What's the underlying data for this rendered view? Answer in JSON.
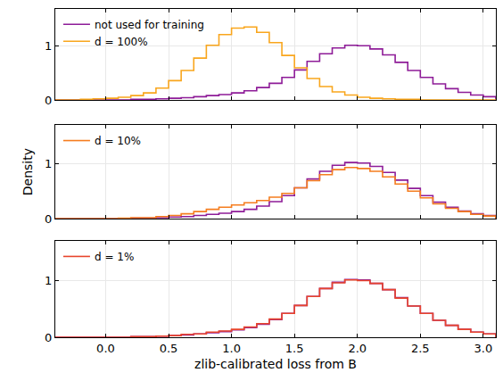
{
  "chart_data": [
    {
      "type": "histogram",
      "bins": [
        -0.4,
        -0.3,
        -0.2,
        -0.1,
        0.0,
        0.1,
        0.2,
        0.3,
        0.4,
        0.5,
        0.6,
        0.7,
        0.8,
        0.9,
        1.0,
        1.1,
        1.2,
        1.3,
        1.4,
        1.5,
        1.6,
        1.7,
        1.8,
        1.9,
        2.0,
        2.1,
        2.2,
        2.3,
        2.4,
        2.5,
        2.6,
        2.7,
        2.8,
        2.9,
        3.0,
        3.1
      ],
      "series": [
        {
          "name": "not used for training",
          "color": "#8e1c98",
          "values": [
            0,
            0,
            0,
            0,
            0,
            0,
            0.01,
            0.01,
            0.02,
            0.03,
            0.04,
            0.06,
            0.08,
            0.1,
            0.13,
            0.17,
            0.23,
            0.31,
            0.42,
            0.56,
            0.72,
            0.86,
            0.97,
            1.02,
            1.01,
            0.95,
            0.84,
            0.7,
            0.55,
            0.42,
            0.3,
            0.21,
            0.14,
            0.09,
            0.06
          ]
        },
        {
          "name": "d = 100%",
          "color": "#f9a61d",
          "values": [
            0,
            0,
            0.01,
            0.02,
            0.03,
            0.05,
            0.08,
            0.13,
            0.22,
            0.36,
            0.55,
            0.78,
            1.02,
            1.22,
            1.34,
            1.36,
            1.26,
            1.07,
            0.83,
            0.6,
            0.4,
            0.25,
            0.15,
            0.09,
            0.05,
            0.03,
            0.02,
            0.01,
            0.01,
            0,
            0,
            0,
            0,
            0,
            0
          ]
        }
      ],
      "xlim": [
        -0.4,
        3.1
      ],
      "xticks": [
        {
          "value": 0,
          "label": "0.0"
        },
        {
          "value": 0.5,
          "label": "0.5"
        },
        {
          "value": 1,
          "label": "1.0"
        },
        {
          "value": 1.5,
          "label": "1.5"
        },
        {
          "value": 2,
          "label": "2.0"
        },
        {
          "value": 2.5,
          "label": "2.5"
        },
        {
          "value": 3,
          "label": "3.0"
        }
      ],
      "ylim": [
        0,
        1.7
      ],
      "yticks": [
        0,
        1
      ],
      "grid": true,
      "legend": "upper left",
      "tick_labels": "y"
    },
    {
      "type": "histogram",
      "bins": [
        -0.4,
        -0.3,
        -0.2,
        -0.1,
        0.0,
        0.1,
        0.2,
        0.3,
        0.4,
        0.5,
        0.6,
        0.7,
        0.8,
        0.9,
        1.0,
        1.1,
        1.2,
        1.3,
        1.4,
        1.5,
        1.6,
        1.7,
        1.8,
        1.9,
        2.0,
        2.1,
        2.2,
        2.3,
        2.4,
        2.5,
        2.6,
        2.7,
        2.8,
        2.9,
        3.0,
        3.1
      ],
      "series": [
        {
          "name": null,
          "color": "#8e1c98",
          "values": [
            0,
            0,
            0,
            0,
            0,
            0,
            0.01,
            0.01,
            0.02,
            0.03,
            0.04,
            0.06,
            0.08,
            0.1,
            0.13,
            0.17,
            0.23,
            0.31,
            0.42,
            0.56,
            0.72,
            0.86,
            0.97,
            1.02,
            1.01,
            0.95,
            0.84,
            0.7,
            0.55,
            0.42,
            0.3,
            0.21,
            0.14,
            0.09,
            0.06
          ]
        },
        {
          "name": "d = 10%",
          "color": "#f57d1f",
          "values": [
            0,
            0,
            0,
            0,
            0,
            0.01,
            0.02,
            0.02,
            0.04,
            0.06,
            0.09,
            0.13,
            0.17,
            0.21,
            0.25,
            0.29,
            0.33,
            0.39,
            0.46,
            0.56,
            0.69,
            0.8,
            0.89,
            0.93,
            0.91,
            0.86,
            0.76,
            0.63,
            0.5,
            0.38,
            0.27,
            0.19,
            0.13,
            0.08,
            0.05
          ]
        }
      ],
      "xlim": [
        -0.4,
        3.1
      ],
      "xticks": [
        {
          "value": 0,
          "label": "0.0"
        },
        {
          "value": 0.5,
          "label": "0.5"
        },
        {
          "value": 1,
          "label": "1.0"
        },
        {
          "value": 1.5,
          "label": "1.5"
        },
        {
          "value": 2,
          "label": "2.0"
        },
        {
          "value": 2.5,
          "label": "2.5"
        },
        {
          "value": 3,
          "label": "3.0"
        }
      ],
      "ylim": [
        0,
        1.7
      ],
      "yticks": [
        0,
        1
      ],
      "ylabel": "Density",
      "grid": true,
      "legend": "upper left",
      "tick_labels": "y"
    },
    {
      "type": "histogram",
      "bins": [
        -0.4,
        -0.3,
        -0.2,
        -0.1,
        0.0,
        0.1,
        0.2,
        0.3,
        0.4,
        0.5,
        0.6,
        0.7,
        0.8,
        0.9,
        1.0,
        1.1,
        1.2,
        1.3,
        1.4,
        1.5,
        1.6,
        1.7,
        1.8,
        1.9,
        2.0,
        2.1,
        2.2,
        2.3,
        2.4,
        2.5,
        2.6,
        2.7,
        2.8,
        2.9,
        3.0,
        3.1
      ],
      "series": [
        {
          "name": null,
          "color": "#8e1c98",
          "values": [
            0,
            0,
            0,
            0,
            0,
            0,
            0.01,
            0.01,
            0.02,
            0.03,
            0.04,
            0.06,
            0.08,
            0.1,
            0.13,
            0.17,
            0.23,
            0.31,
            0.42,
            0.56,
            0.72,
            0.86,
            0.97,
            1.02,
            1.01,
            0.95,
            0.84,
            0.7,
            0.55,
            0.42,
            0.3,
            0.21,
            0.14,
            0.09,
            0.06
          ]
        },
        {
          "name": "d = 1%",
          "color": "#e8452c",
          "values": [
            0,
            0,
            0,
            0,
            0,
            0,
            0.01,
            0.01,
            0.02,
            0.03,
            0.05,
            0.06,
            0.09,
            0.11,
            0.14,
            0.18,
            0.24,
            0.32,
            0.42,
            0.56,
            0.72,
            0.86,
            0.96,
            1.01,
            1.0,
            0.95,
            0.84,
            0.69,
            0.55,
            0.42,
            0.3,
            0.21,
            0.14,
            0.09,
            0.06
          ]
        }
      ],
      "xlim": [
        -0.4,
        3.1
      ],
      "xticks": [
        {
          "value": 0,
          "label": "0.0"
        },
        {
          "value": 0.5,
          "label": "0.5"
        },
        {
          "value": 1,
          "label": "1.0"
        },
        {
          "value": 1.5,
          "label": "1.5"
        },
        {
          "value": 2,
          "label": "2.0"
        },
        {
          "value": 2.5,
          "label": "2.5"
        },
        {
          "value": 3,
          "label": "3.0"
        }
      ],
      "xlabel": "zlib-calibrated loss from B",
      "ylim": [
        0,
        1.7
      ],
      "yticks": [
        0,
        1
      ],
      "grid": true,
      "legend": "upper left",
      "tick_labels": true
    }
  ]
}
